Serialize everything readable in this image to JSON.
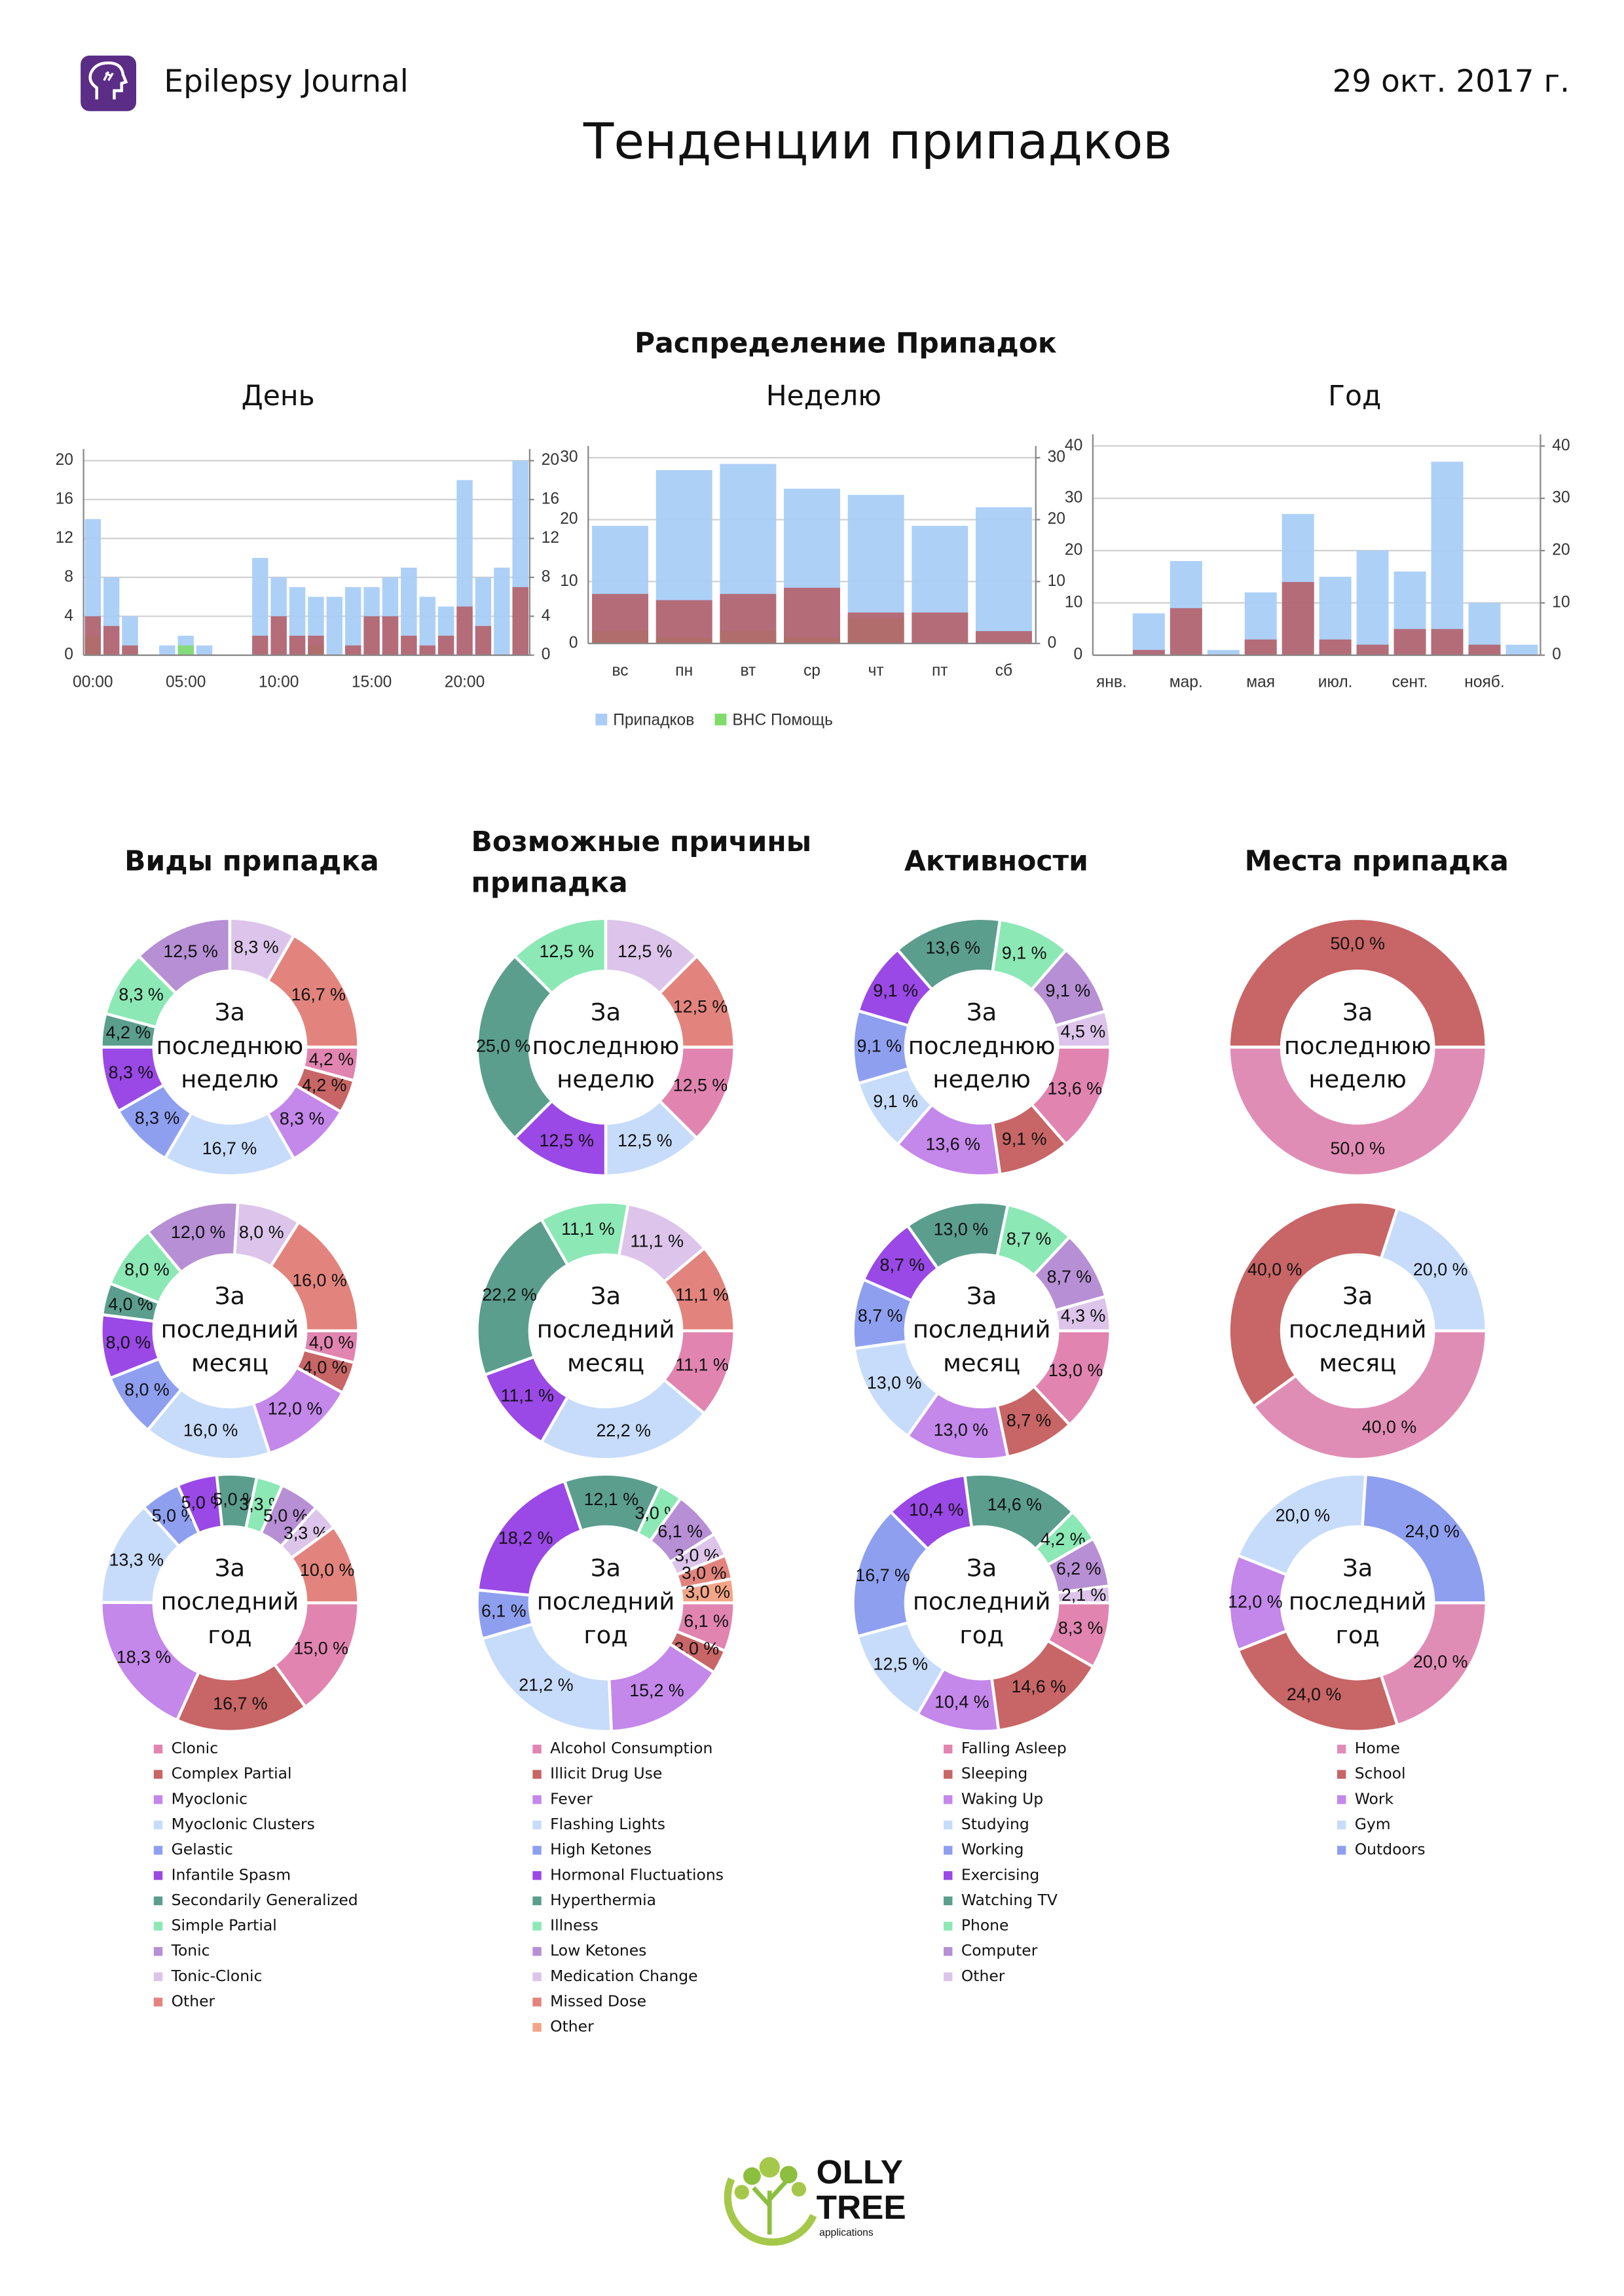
{
  "header": {
    "app_name": "Epilepsy Journal",
    "date": "29 окт. 2017 г.",
    "title": "Тенденции припадков"
  },
  "section_title": "Распределение Припадок",
  "chart_data": [
    {
      "type": "bar",
      "title": "День",
      "categories": [
        "00:00",
        null,
        null,
        null,
        null,
        "05:00",
        null,
        null,
        null,
        null,
        "10:00",
        null,
        null,
        null,
        null,
        "15:00",
        null,
        null,
        null,
        null,
        "20:00",
        null,
        null,
        null
      ],
      "series": [
        {
          "color": "#a9cdf7",
          "values": [
            14,
            8,
            4,
            0,
            1,
            2,
            1,
            0,
            0,
            10,
            8,
            7,
            6,
            6,
            7,
            7,
            8,
            9,
            6,
            5,
            18,
            8,
            9,
            20
          ]
        },
        {
          "color": "#7fdc6a",
          "values": [
            2,
            0,
            0,
            0,
            0,
            1,
            0,
            0,
            0,
            0,
            0,
            0,
            1,
            0,
            0,
            0,
            0,
            0,
            0,
            0,
            0,
            0,
            0,
            0
          ]
        },
        {
          "color": "#b5606a",
          "values": [
            4,
            3,
            1,
            0,
            0,
            0,
            0,
            0,
            0,
            2,
            4,
            2,
            2,
            0,
            1,
            4,
            4,
            2,
            1,
            2,
            5,
            3,
            0,
            7
          ]
        }
      ],
      "ylim": [
        0,
        20
      ],
      "yticks": [
        0,
        4,
        8,
        12,
        16,
        20
      ],
      "y2lim": [
        0,
        20
      ],
      "y2ticks": [
        0,
        4,
        8,
        12,
        16,
        20
      ],
      "grid": true
    },
    {
      "type": "bar",
      "title": "Неделю",
      "categories": [
        "вс",
        "пн",
        "вт",
        "ср",
        "чт",
        "пт",
        "сб"
      ],
      "series": [
        {
          "name": "Припадков",
          "color": "#a9cdf7",
          "values": [
            19,
            28,
            29,
            25,
            24,
            19,
            22
          ]
        },
        {
          "name": "ВНС Помощь",
          "color": "#7fdc6a",
          "values": [
            2,
            1,
            2,
            1,
            4,
            0,
            0
          ]
        },
        {
          "color": "#b5606a",
          "values": [
            8,
            7,
            8,
            9,
            5,
            5,
            2
          ]
        }
      ],
      "ylim": [
        0,
        30
      ],
      "yticks": [
        0,
        10,
        20,
        30
      ],
      "y2lim": [
        0,
        30
      ],
      "y2ticks": [
        0,
        10,
        20,
        30
      ],
      "grid": true,
      "legend": "bottom"
    },
    {
      "type": "bar",
      "title": "Год",
      "categories": [
        "янв.",
        null,
        "мар.",
        null,
        "мая",
        null,
        "июл.",
        null,
        "сент.",
        null,
        "нояб.",
        null
      ],
      "series": [
        {
          "color": "#a9cdf7",
          "values": [
            0,
            8,
            18,
            1,
            12,
            27,
            15,
            20,
            16,
            37,
            10,
            2
          ]
        },
        {
          "color": "#b5606a",
          "values": [
            0,
            1,
            9,
            0,
            3,
            14,
            3,
            2,
            5,
            5,
            2,
            0
          ]
        }
      ],
      "ylim": [
        0,
        40
      ],
      "yticks": [
        0,
        10,
        20,
        30,
        40
      ],
      "y2lim": [
        0,
        40
      ],
      "y2ticks": [
        0,
        10,
        20,
        30,
        40
      ],
      "grid": true
    },
    {
      "type": "donut",
      "title": "Виды припадка",
      "categories": [
        "Clonic",
        "Complex Partial",
        "Myoclonic",
        "Myoclonic Clusters",
        "Gelastic",
        "Infantile Spasm",
        "Secondarily Generalized",
        "Simple Partial",
        "Tonic",
        "Tonic-Clonic",
        "Other"
      ],
      "colors": [
        "#e184b0",
        "#c86566",
        "#c487ea",
        "#c7dcfa",
        "#8e9ff0",
        "#9a48e6",
        "#5b9e8d",
        "#8ce8b5",
        "#b68fd4",
        "#dcc4ea",
        "#e2847d"
      ],
      "rings": [
        {
          "center": [
            "За",
            "последнюю",
            "неделю"
          ],
          "values": [
            4.2,
            4.2,
            8.3,
            16.7,
            8.3,
            8.3,
            4.2,
            8.3,
            12.5,
            8.3,
            16.7
          ],
          "value_labels": [
            "4,2 %",
            "4,2 %",
            "8,3 %",
            "16,7 %",
            "8,3 %",
            "8,3 %",
            "4,2 %",
            "8,3 %",
            "12,5 %",
            "8,3 %",
            "16,7 %"
          ]
        },
        {
          "center": [
            "За",
            "последний",
            "месяц"
          ],
          "values": [
            4.0,
            4.0,
            12.0,
            16.0,
            8.0,
            8.0,
            4.0,
            8.0,
            12.0,
            8.0,
            16.0
          ],
          "value_labels": [
            "4,0 %",
            "4,0 %",
            "12,0 %",
            "16,0 %",
            "8,0 %",
            "8,0 %",
            "4,0 %",
            "8,0 %",
            "12,0 %",
            "8,0 %",
            "16,0 %"
          ]
        },
        {
          "center": [
            "За",
            "последний",
            "год"
          ],
          "values": [
            15.0,
            16.7,
            18.3,
            13.3,
            5.0,
            5.0,
            5.0,
            3.3,
            5.0,
            3.3,
            10.0
          ],
          "value_labels": [
            "15,0 %",
            "16,7 %",
            "18,3 %",
            "13,3 %",
            "5,0 %",
            "5,0 %",
            "5,0 %",
            "3,3 %",
            "5,0 %",
            "3,3 %",
            "10,0 %"
          ]
        }
      ]
    },
    {
      "type": "donut",
      "title": "Возможные причины припадка",
      "categories": [
        "Alcohol Consumption",
        "Illicit Drug Use",
        "Fever",
        "Flashing Lights",
        "High Ketones",
        "Hormonal Fluctuations",
        "Hyperthermia",
        "Illness",
        "Low Ketones",
        "Medication Change",
        "Missed Dose",
        "Other"
      ],
      "colors": [
        "#e184b0",
        "#c86566",
        "#c487ea",
        "#c7dcfa",
        "#8e9ff0",
        "#9a48e6",
        "#5b9e8d",
        "#8ce8b5",
        "#b68fd4",
        "#dcc4ea",
        "#e2847d",
        "#f2a587"
      ],
      "rings": [
        {
          "center": [
            "За",
            "последнюю",
            "неделю"
          ],
          "values": [
            12.5,
            0,
            0,
            12.5,
            0,
            12.5,
            25.0,
            12.5,
            0,
            12.5,
            12.5,
            0
          ],
          "value_labels": [
            "12,5 %",
            null,
            null,
            "12,5 %",
            null,
            "12,5 %",
            "25,0 %",
            "12,5 %",
            null,
            "12,5 %",
            "12,5 %",
            null
          ]
        },
        {
          "center": [
            "За",
            "последний",
            "месяц"
          ],
          "values": [
            11.1,
            0,
            0,
            22.2,
            0,
            11.1,
            22.2,
            11.1,
            0,
            11.1,
            11.1,
            0
          ],
          "value_labels": [
            "11,1 %",
            null,
            null,
            "22,2 %",
            null,
            "11,1 %",
            "22,2 %",
            "11,1 %",
            null,
            "11,1 %",
            "11,1 %",
            null
          ]
        },
        {
          "center": [
            "За",
            "последний",
            "год"
          ],
          "values": [
            6.1,
            3.0,
            15.2,
            21.2,
            6.1,
            18.2,
            12.1,
            3.0,
            6.1,
            3.0,
            3.0,
            3.0
          ],
          "value_labels": [
            "6,1 %",
            "3,0 %",
            "15,2 %",
            "21,2 %",
            "6,1 %",
            "18,2 %",
            "12,1 %",
            "3,0 %",
            "6,1 %",
            "3,0 %",
            "3,0 %",
            "3,0 %"
          ]
        }
      ]
    },
    {
      "type": "donut",
      "title": "Активности",
      "categories": [
        "Falling Asleep",
        "Sleeping",
        "Waking Up",
        "Studying",
        "Working",
        "Exercising",
        "Watching TV",
        "Phone",
        "Computer",
        "Other"
      ],
      "colors": [
        "#e184b0",
        "#c86566",
        "#c487ea",
        "#c7dcfa",
        "#8e9ff0",
        "#9a48e6",
        "#5b9e8d",
        "#8ce8b5",
        "#b68fd4",
        "#dcc4ea"
      ],
      "rings": [
        {
          "center": [
            "За",
            "последнюю",
            "неделю"
          ],
          "values": [
            13.6,
            9.1,
            13.6,
            9.1,
            9.1,
            9.1,
            13.6,
            9.1,
            9.1,
            4.5
          ],
          "value_labels": [
            "13,6 %",
            "9,1 %",
            "13,6 %",
            "9,1 %",
            "9,1 %",
            "9,1 %",
            "13,6 %",
            "9,1 %",
            "9,1 %",
            "4,5 %"
          ]
        },
        {
          "center": [
            "За",
            "последний",
            "месяц"
          ],
          "values": [
            13.0,
            8.7,
            13.0,
            13.0,
            8.7,
            8.7,
            13.0,
            8.7,
            8.7,
            4.3
          ],
          "value_labels": [
            "13,0 %",
            "8,7 %",
            "13,0 %",
            "13,0 %",
            "8,7 %",
            "8,7 %",
            "13,0 %",
            "8,7 %",
            "8,7 %",
            "4,3 %"
          ]
        },
        {
          "center": [
            "За",
            "последний",
            "год"
          ],
          "values": [
            8.3,
            14.6,
            10.4,
            12.5,
            16.7,
            10.4,
            14.6,
            4.2,
            6.2,
            2.1
          ],
          "value_labels": [
            "8,3 %",
            "14,6 %",
            "10,4 %",
            "12,5 %",
            "16,7 %",
            "10,4 %",
            "14,6 %",
            "4,2 %",
            "6,2 %",
            "2,1 %"
          ]
        }
      ]
    },
    {
      "type": "donut",
      "title": "Места припадка",
      "categories": [
        "Home",
        "School",
        "Work",
        "Gym",
        "Outdoors"
      ],
      "colors": [
        "#e08db5",
        "#c86566",
        "#c487ea",
        "#c7dcfa",
        "#8e9ff0"
      ],
      "rings": [
        {
          "center": [
            "За",
            "последнюю",
            "неделю"
          ],
          "values": [
            50.0,
            50.0,
            0,
            0,
            0
          ],
          "value_labels": [
            "50,0 %",
            "50,0 %",
            null,
            null,
            null
          ]
        },
        {
          "center": [
            "За",
            "последний",
            "месяц"
          ],
          "values": [
            40.0,
            40.0,
            0,
            20.0,
            0
          ],
          "value_labels": [
            "40,0 %",
            "40,0 %",
            null,
            "20,0 %",
            null
          ]
        },
        {
          "center": [
            "За",
            "последний",
            "год"
          ],
          "values": [
            20.0,
            24.0,
            12.0,
            20.0,
            24.0
          ],
          "value_labels": [
            "20,0 %",
            "24,0 %",
            "12,0 %",
            "20,0 %",
            "24,0 %"
          ]
        }
      ]
    }
  ],
  "footer": {
    "logo_line1": "OLLY",
    "logo_line2": "TREE",
    "logo_line3": "applications"
  }
}
